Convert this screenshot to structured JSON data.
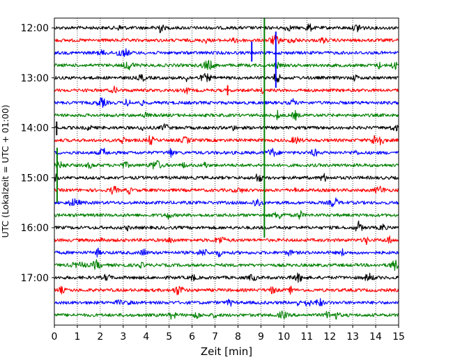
{
  "chart_data": {
    "type": "line",
    "title": "",
    "xlabel": "Zeit  [min]",
    "ylabel": "UTC (Lokalzeit = UTC + 01:00)",
    "xlim": [
      0,
      15
    ],
    "x_ticks": [
      0,
      1,
      2,
      3,
      4,
      5,
      6,
      7,
      8,
      9,
      10,
      11,
      12,
      13,
      14,
      15
    ],
    "y_tick_labels": [
      "12:00",
      "13:00",
      "14:00",
      "15:00",
      "16:00",
      "17:00"
    ],
    "y_tick_traces": [
      0,
      4,
      8,
      12,
      16,
      20
    ],
    "trace_minutes": 15,
    "grid": "vertical dotted lines at every minute",
    "colors": [
      "#000000",
      "#ff0000",
      "#0000ff",
      "#008000"
    ],
    "traces": [
      {
        "start": "12:00",
        "color": "#000000"
      },
      {
        "start": "12:15",
        "color": "#ff0000"
      },
      {
        "start": "12:30",
        "color": "#0000ff"
      },
      {
        "start": "12:45",
        "color": "#008000"
      },
      {
        "start": "13:00",
        "color": "#000000"
      },
      {
        "start": "13:15",
        "color": "#ff0000"
      },
      {
        "start": "13:30",
        "color": "#0000ff"
      },
      {
        "start": "13:45",
        "color": "#008000"
      },
      {
        "start": "14:00",
        "color": "#000000"
      },
      {
        "start": "14:15",
        "color": "#ff0000"
      },
      {
        "start": "14:30",
        "color": "#0000ff"
      },
      {
        "start": "14:45",
        "color": "#008000"
      },
      {
        "start": "15:00",
        "color": "#000000"
      },
      {
        "start": "15:15",
        "color": "#ff0000"
      },
      {
        "start": "15:30",
        "color": "#0000ff"
      },
      {
        "start": "15:45",
        "color": "#008000"
      },
      {
        "start": "16:00",
        "color": "#000000"
      },
      {
        "start": "16:15",
        "color": "#ff0000"
      },
      {
        "start": "16:30",
        "color": "#0000ff"
      },
      {
        "start": "16:45",
        "color": "#008000"
      },
      {
        "start": "17:00",
        "color": "#000000"
      },
      {
        "start": "17:15",
        "color": "#ff0000"
      },
      {
        "start": "17:30",
        "color": "#0000ff"
      },
      {
        "start": "17:45",
        "color": "#008000"
      }
    ],
    "spikes": [
      {
        "trace": 0,
        "minute": 9.15,
        "color": "#008000",
        "from_trace": -0.8,
        "to_trace": 16.8
      },
      {
        "trace": 2,
        "minute": 8.6,
        "color": "#0000ff",
        "from_trace": 1.1,
        "to_trace": 2.7
      },
      {
        "trace": 2,
        "minute": 9.65,
        "color": "#0000ff",
        "from_trace": 0.3,
        "to_trace": 4.8
      },
      {
        "trace": 5,
        "minute": 7.55,
        "color": "#ff0000",
        "from_trace": 4.6,
        "to_trace": 5.4
      },
      {
        "trace": 8,
        "minute": 0.1,
        "color": "#000000",
        "from_trace": 7.5,
        "to_trace": 8.6
      },
      {
        "trace": 11,
        "minute": 0.12,
        "color": "#008000",
        "from_trace": 9.6,
        "to_trace": 14.0
      }
    ]
  }
}
